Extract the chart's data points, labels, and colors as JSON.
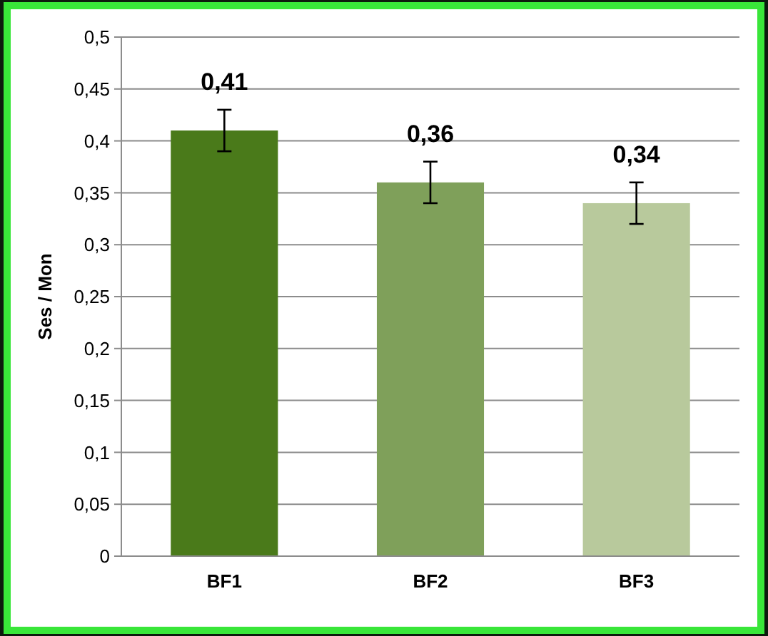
{
  "chart_data": {
    "type": "bar",
    "ylabel": "Ses / Mon",
    "categories": [
      "BF1",
      "BF2",
      "BF3"
    ],
    "values": [
      0.41,
      0.36,
      0.34
    ],
    "colors": [
      "#4a7a1a",
      "#7fa05a",
      "#b8c99c"
    ],
    "errors": [
      0.02,
      0.02,
      0.02
    ],
    "value_labels": [
      "0,41",
      "0,36",
      "0,34"
    ],
    "ylim": [
      0,
      0.5
    ],
    "yticks": [
      {
        "value": 0,
        "label": "0"
      },
      {
        "value": 0.05,
        "label": "0,05"
      },
      {
        "value": 0.1,
        "label": "0,1"
      },
      {
        "value": 0.15,
        "label": "0,15"
      },
      {
        "value": 0.2,
        "label": "0,2"
      },
      {
        "value": 0.25,
        "label": "0,25"
      },
      {
        "value": 0.3,
        "label": "0,3"
      },
      {
        "value": 0.35,
        "label": "0,35"
      },
      {
        "value": 0.4,
        "label": "0,4"
      },
      {
        "value": 0.45,
        "label": "0,45"
      },
      {
        "value": 0.5,
        "label": "0,5"
      }
    ],
    "grid": "y"
  }
}
